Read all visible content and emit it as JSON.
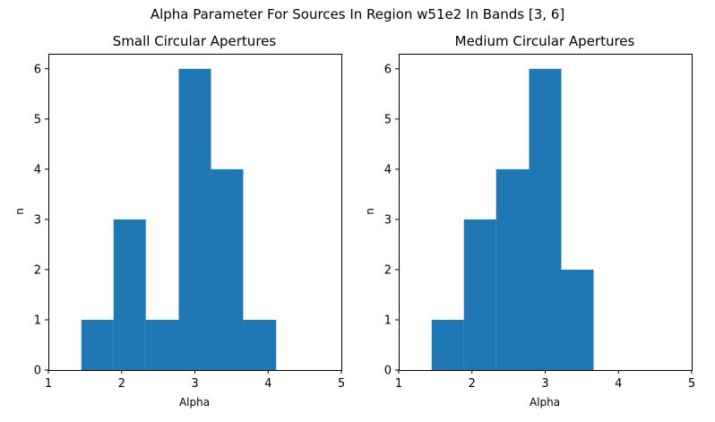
{
  "figure": {
    "suptitle": "Alpha Parameter For Sources In Region w51e2 In Bands [3, 6]"
  },
  "colors": {
    "bar": "#1f77b4",
    "axes": "#000000",
    "background": "#ffffff"
  },
  "chart_data": [
    {
      "type": "bar",
      "title": "Small Circular Apertures",
      "xlabel": "Alpha",
      "ylabel": "n",
      "xlim": [
        1,
        5
      ],
      "ylim": [
        0,
        6.3
      ],
      "xticks": [
        1,
        2,
        3,
        4,
        5
      ],
      "yticks": [
        0,
        1,
        2,
        3,
        4,
        5,
        6
      ],
      "bins": [
        {
          "x0": 1.45,
          "x1": 1.89,
          "value": 1
        },
        {
          "x0": 1.89,
          "x1": 2.33,
          "value": 3
        },
        {
          "x0": 2.33,
          "x1": 2.78,
          "value": 1
        },
        {
          "x0": 2.78,
          "x1": 3.22,
          "value": 6
        },
        {
          "x0": 3.22,
          "x1": 3.66,
          "value": 4
        },
        {
          "x0": 3.66,
          "x1": 4.11,
          "value": 1
        }
      ],
      "grid": false
    },
    {
      "type": "bar",
      "title": "Medium Circular Apertures",
      "xlabel": "Alpha",
      "ylabel": "n",
      "xlim": [
        1,
        5
      ],
      "ylim": [
        0,
        6.3
      ],
      "xticks": [
        1,
        2,
        3,
        4,
        5
      ],
      "yticks": [
        0,
        1,
        2,
        3,
        4,
        5,
        6
      ],
      "bins": [
        {
          "x0": 1.45,
          "x1": 1.89,
          "value": 1
        },
        {
          "x0": 1.89,
          "x1": 2.33,
          "value": 3
        },
        {
          "x0": 2.33,
          "x1": 2.78,
          "value": 4
        },
        {
          "x0": 2.78,
          "x1": 3.22,
          "value": 6
        },
        {
          "x0": 3.22,
          "x1": 3.66,
          "value": 2
        }
      ],
      "grid": false
    }
  ]
}
